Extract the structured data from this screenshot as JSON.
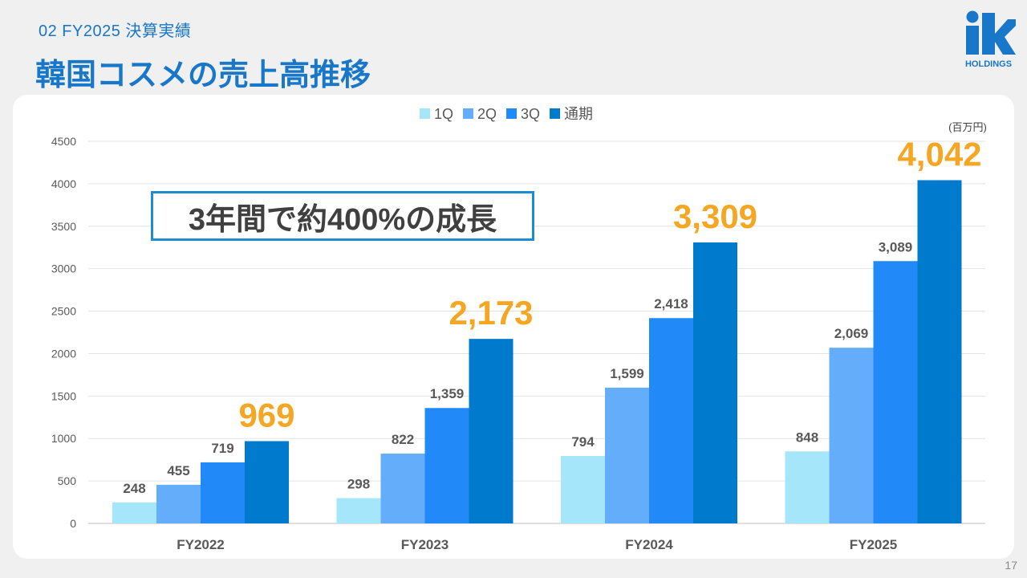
{
  "header": {
    "section_label": "02  FY2025  決算実績",
    "title": "韓国コスメの売上高推移"
  },
  "logo": {
    "text_main": "ik",
    "text_sub": "HOLDINGS",
    "color": "#1877c9"
  },
  "page_number": "17",
  "callout": "3年間で約400%の成長",
  "chart_data": {
    "type": "bar",
    "categories": [
      "FY2022",
      "FY2023",
      "FY2024",
      "FY2025"
    ],
    "series": [
      {
        "name": "1Q",
        "values": [
          248,
          298,
          794,
          848
        ],
        "color": "#a6e6fb"
      },
      {
        "name": "2Q",
        "values": [
          455,
          822,
          1599,
          2069
        ],
        "color": "#63adfb"
      },
      {
        "name": "3Q",
        "values": [
          719,
          1359,
          2418,
          3089
        ],
        "color": "#2189f8"
      },
      {
        "name": "通期",
        "values": [
          969,
          2173,
          3309,
          4042
        ],
        "color": "#007acc"
      }
    ],
    "data_labels": [
      [
        "248",
        "455",
        "719",
        "969"
      ],
      [
        "298",
        "822",
        "1,359",
        "2,173"
      ],
      [
        "794",
        "1,599",
        "2,418",
        "3,309"
      ],
      [
        "848",
        "2,069",
        "3,089",
        "4,042"
      ]
    ],
    "ylim": [
      0,
      4500
    ],
    "yticks": [
      "0",
      "500",
      "1000",
      "1500",
      "2000",
      "2500",
      "3000",
      "3500",
      "4000",
      "4500"
    ],
    "unit": "(百万円)",
    "legend_position": "top",
    "grid": true,
    "label_color": "#595959",
    "highlight_color": "#f5a623"
  }
}
